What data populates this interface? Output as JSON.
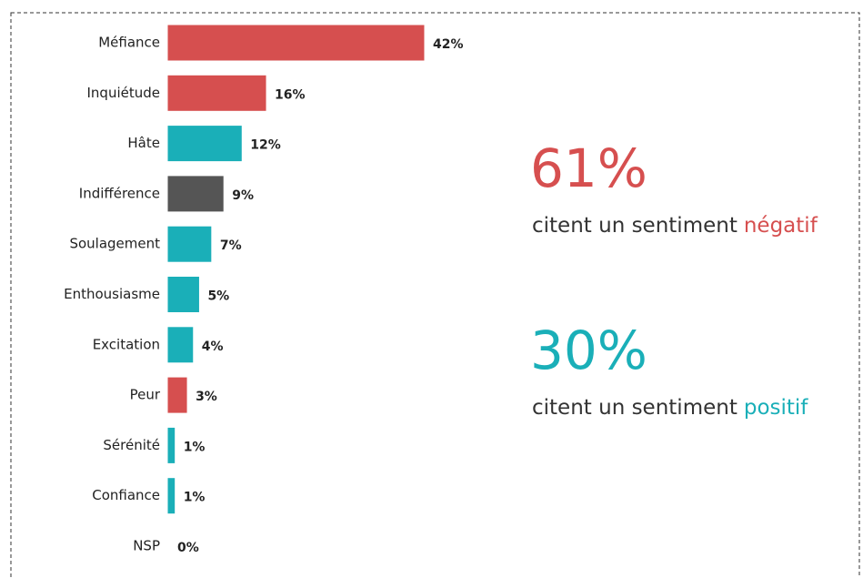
{
  "chart_data": {
    "type": "bar",
    "orientation": "horizontal",
    "categories": [
      "Méfiance",
      "Inquiétude",
      "Hâte",
      "Indifférence",
      "Soulagement",
      "Enthousiasme",
      "Excitation",
      "Peur",
      "Sérénité",
      "Confiance",
      "NSP"
    ],
    "values": [
      42,
      16,
      12,
      9,
      7,
      5,
      4,
      3,
      1,
      1,
      0
    ],
    "value_labels": [
      "42%",
      "16%",
      "12%",
      "9%",
      "7%",
      "5%",
      "4%",
      "3%",
      "1%",
      "1%",
      "0%"
    ],
    "colors": [
      "#d64f4f",
      "#d64f4f",
      "#1aafb8",
      "#555555",
      "#1aafb8",
      "#1aafb8",
      "#1aafb8",
      "#d64f4f",
      "#1aafb8",
      "#1aafb8",
      "#aaaaaa"
    ],
    "annotations": [
      {
        "value": "61%",
        "text": "citent un sentiment",
        "highlight": "négatif",
        "color": "#d64f4f"
      },
      {
        "value": "30%",
        "text": "citent un sentiment",
        "highlight": "positif",
        "color": "#1aafb8"
      }
    ]
  }
}
